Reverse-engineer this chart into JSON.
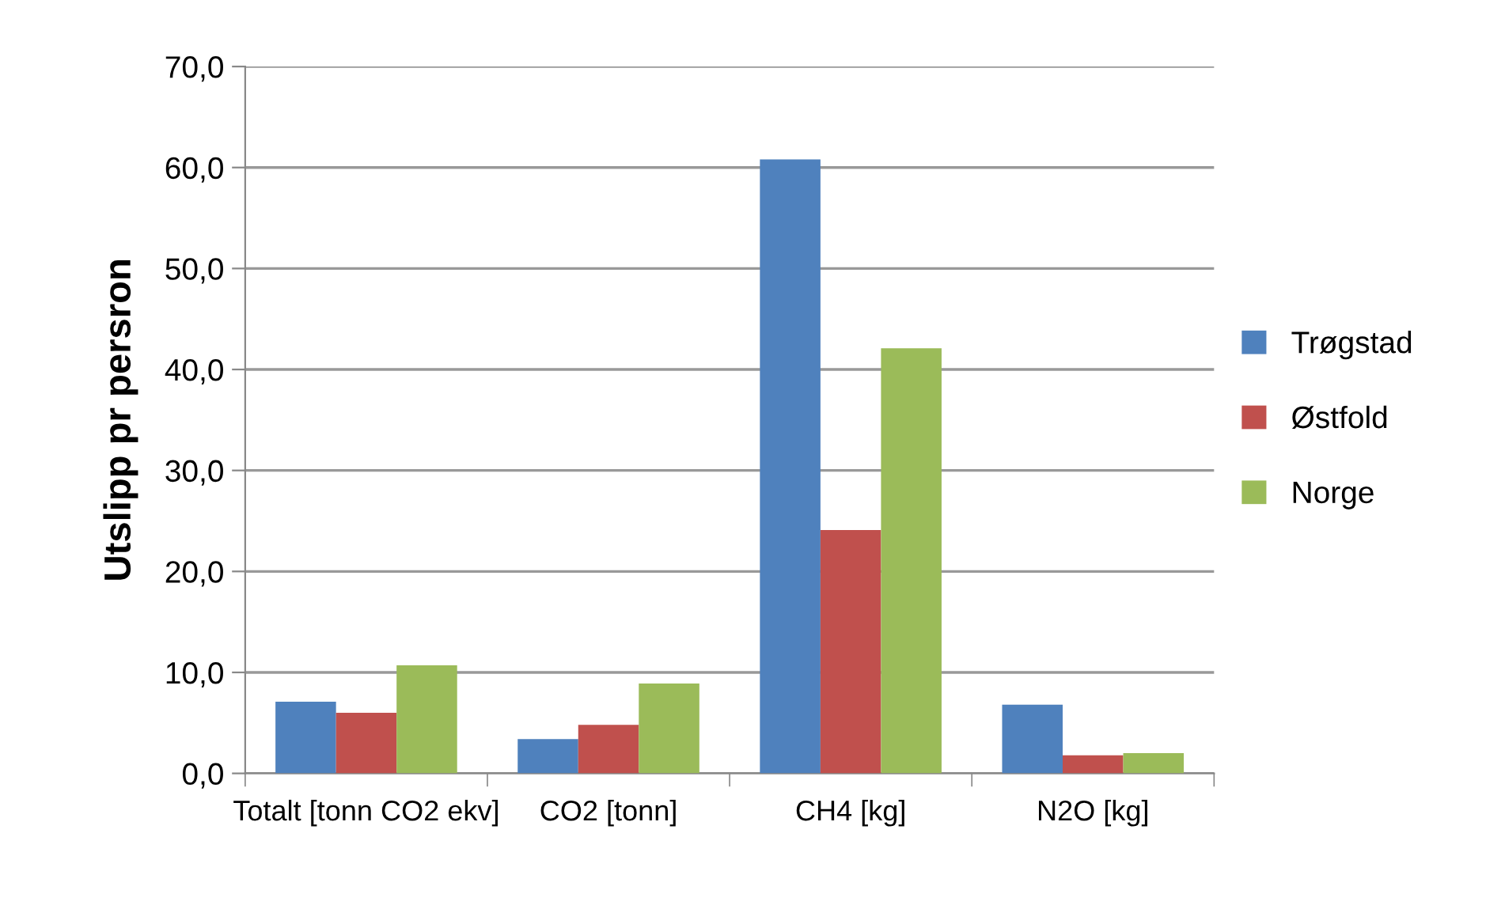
{
  "chart_data": {
    "type": "bar",
    "ylabel": "Utslipp pr persron",
    "categories": [
      "Totalt [tonn CO2 ekv]",
      "CO2 [tonn]",
      "CH4 [kg]",
      "N2O [kg]"
    ],
    "series": [
      {
        "name": "Trøgstad",
        "color": "#4f81bd",
        "values": [
          7.1,
          3.4,
          60.8,
          6.8
        ]
      },
      {
        "name": "Østfold",
        "color": "#c0504d",
        "values": [
          6.0,
          4.8,
          24.1,
          1.8
        ]
      },
      {
        "name": "Norge",
        "color": "#9bbb59",
        "values": [
          10.7,
          8.9,
          42.1,
          2.0
        ]
      }
    ],
    "ylim": [
      0,
      70
    ],
    "yticks": [
      {
        "value": 0,
        "label": "0,0"
      },
      {
        "value": 10,
        "label": "10,0"
      },
      {
        "value": 20,
        "label": "20,0"
      },
      {
        "value": 30,
        "label": "30,0"
      },
      {
        "value": 40,
        "label": "40,0"
      },
      {
        "value": 50,
        "label": "50,0"
      },
      {
        "value": 60,
        "label": "60,0"
      },
      {
        "value": 70,
        "label": "70,0"
      }
    ],
    "grid": "y",
    "legend": "right"
  }
}
